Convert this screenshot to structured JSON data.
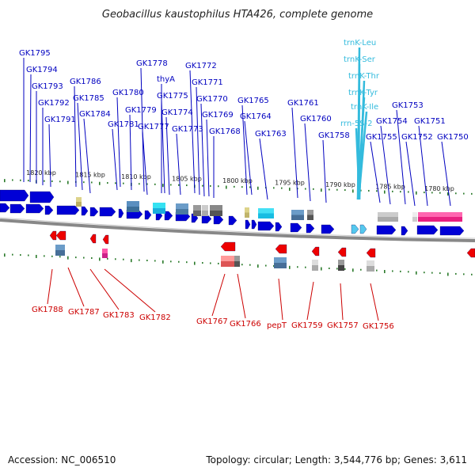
{
  "title": "Geobacillus kaustophilus HTA426, complete genome",
  "footer": {
    "accession": "Accession: NC_006510",
    "summary": "Topology: circular; Length: 3,544,776 bp; Genes: 3,611"
  },
  "colors": {
    "forward_gene": "#0000d6",
    "reverse_gene": "#ee0000",
    "rna": "#55c8ee",
    "tick": "#2a7a2a",
    "backbone": "#888888",
    "label_forward": "#0000c0",
    "label_reverse": "#cc0000",
    "label_rna": "#33bbdd"
  },
  "scale": {
    "ticks": [
      "1820 kbp",
      "1815 kbp",
      "1810 kbp",
      "1805 kbp",
      "1800 kbp",
      "1795 kbp",
      "1790 kbp",
      "1785 kbp",
      "1780 kbp"
    ]
  },
  "labels": {
    "forward": [
      "GK1795",
      "GK1794",
      "GK1793",
      "GK1792",
      "GK1791",
      "GK1786",
      "GK1785",
      "GK1784",
      "GK1780",
      "GK1781",
      "GK1779",
      "GK1778",
      "thyA",
      "GK1777",
      "GK1775",
      "GK1774",
      "GK1773",
      "GK1772",
      "GK1771",
      "GK1770",
      "GK1769",
      "GK1768",
      "GK1765",
      "GK1764",
      "GK1763",
      "GK1761",
      "GK1760",
      "GK1758",
      "GK1755",
      "GK1754",
      "GK1753",
      "GK1752",
      "GK1751",
      "GK1750"
    ],
    "rna": [
      "trnK-Leu",
      "trnK-Ser",
      "trnK-Thr",
      "trnK-Tyr",
      "trnK-Ile",
      "rrn-5S-2"
    ],
    "reverse": [
      "GK1788",
      "GK1787",
      "GK1783",
      "GK1782",
      "GK1767",
      "GK1766",
      "pepT",
      "GK1759",
      "GK1757",
      "GK1756"
    ]
  }
}
